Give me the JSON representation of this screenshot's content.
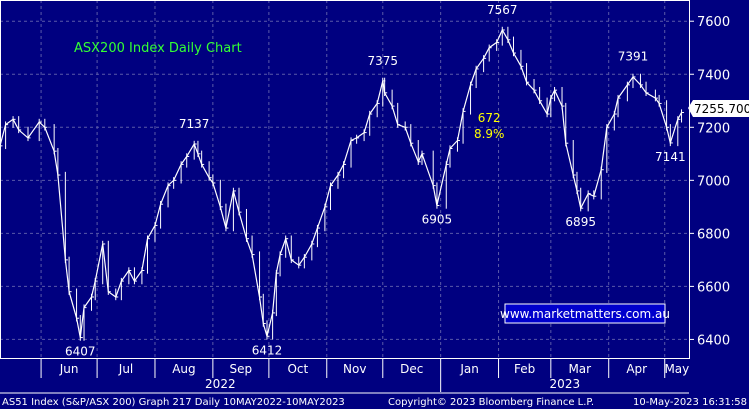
{
  "chart_data": {
    "type": "line",
    "title": "ASX200 Index Daily Chart",
    "ylim": [
      6330,
      7680
    ],
    "grid": true,
    "y_ticks": [
      7600,
      7400,
      7200,
      7000,
      6800,
      6600,
      6400
    ],
    "y_tick_labels": [
      "7600",
      "7400",
      "7200",
      "7000",
      "6800",
      "6600",
      "6400"
    ],
    "x_tick_labels": [
      "Jun",
      "Jul",
      "Aug",
      "Sep",
      "Oct",
      "Nov",
      "Dec",
      "Jan",
      "Feb",
      "Mar",
      "Apr",
      "May"
    ],
    "year_labels": [
      "2022",
      "2023"
    ],
    "last_price": "7255.700",
    "series": [
      {
        "points": [
          [
            "2022-05-10",
            7130
          ],
          [
            "2022-05-13",
            7210
          ],
          [
            "2022-05-17",
            7230
          ],
          [
            "2022-05-20",
            7190
          ],
          [
            "2022-05-25",
            7160
          ],
          [
            "2022-05-31",
            7220
          ],
          [
            "2022-06-03",
            7200
          ],
          [
            "2022-06-08",
            7110
          ],
          [
            "2022-06-10",
            7020
          ],
          [
            "2022-06-14",
            6700
          ],
          [
            "2022-06-16",
            6580
          ],
          [
            "2022-06-20",
            6480
          ],
          [
            "2022-06-22",
            6407
          ],
          [
            "2022-06-24",
            6520
          ],
          [
            "2022-06-28",
            6560
          ],
          [
            "2022-06-30",
            6620
          ],
          [
            "2022-07-04",
            6760
          ],
          [
            "2022-07-07",
            6580
          ],
          [
            "2022-07-11",
            6560
          ],
          [
            "2022-07-14",
            6620
          ],
          [
            "2022-07-18",
            6660
          ],
          [
            "2022-07-21",
            6620
          ],
          [
            "2022-07-25",
            6660
          ],
          [
            "2022-07-28",
            6780
          ],
          [
            "2022-08-01",
            6830
          ],
          [
            "2022-08-04",
            6910
          ],
          [
            "2022-08-08",
            6980
          ],
          [
            "2022-08-11",
            7000
          ],
          [
            "2022-08-15",
            7060
          ],
          [
            "2022-08-18",
            7090
          ],
          [
            "2022-08-22",
            7137
          ],
          [
            "2022-08-24",
            7100
          ],
          [
            "2022-08-26",
            7060
          ],
          [
            "2022-08-30",
            7010
          ],
          [
            "2022-09-01",
            6990
          ],
          [
            "2022-09-05",
            6900
          ],
          [
            "2022-09-08",
            6820
          ],
          [
            "2022-09-12",
            6960
          ],
          [
            "2022-09-15",
            6880
          ],
          [
            "2022-09-19",
            6780
          ],
          [
            "2022-09-22",
            6720
          ],
          [
            "2022-09-26",
            6560
          ],
          [
            "2022-09-28",
            6460
          ],
          [
            "2022-09-30",
            6412
          ],
          [
            "2022-10-03",
            6500
          ],
          [
            "2022-10-05",
            6650
          ],
          [
            "2022-10-07",
            6720
          ],
          [
            "2022-10-10",
            6780
          ],
          [
            "2022-10-13",
            6700
          ],
          [
            "2022-10-17",
            6680
          ],
          [
            "2022-10-20",
            6710
          ],
          [
            "2022-10-24",
            6760
          ],
          [
            "2022-10-27",
            6820
          ],
          [
            "2022-10-31",
            6900
          ],
          [
            "2022-11-03",
            6980
          ],
          [
            "2022-11-07",
            7020
          ],
          [
            "2022-11-10",
            7060
          ],
          [
            "2022-11-14",
            7150
          ],
          [
            "2022-11-17",
            7160
          ],
          [
            "2022-11-21",
            7180
          ],
          [
            "2022-11-24",
            7250
          ],
          [
            "2022-11-28",
            7290
          ],
          [
            "2022-12-01",
            7375
          ],
          [
            "2022-12-02",
            7330
          ],
          [
            "2022-12-06",
            7280
          ],
          [
            "2022-12-09",
            7210
          ],
          [
            "2022-12-13",
            7200
          ],
          [
            "2022-12-16",
            7140
          ],
          [
            "2022-12-20",
            7070
          ],
          [
            "2022-12-22",
            7100
          ],
          [
            "2022-12-28",
            6980
          ],
          [
            "2022-12-30",
            6905
          ],
          [
            "2023-01-04",
            7060
          ],
          [
            "2023-01-06",
            7120
          ],
          [
            "2023-01-10",
            7150
          ],
          [
            "2023-01-13",
            7260
          ],
          [
            "2023-01-17",
            7360
          ],
          [
            "2023-01-20",
            7420
          ],
          [
            "2023-01-24",
            7460
          ],
          [
            "2023-01-27",
            7500
          ],
          [
            "2023-01-31",
            7520
          ],
          [
            "2023-02-03",
            7567
          ],
          [
            "2023-02-06",
            7530
          ],
          [
            "2023-02-09",
            7480
          ],
          [
            "2023-02-13",
            7430
          ],
          [
            "2023-02-16",
            7370
          ],
          [
            "2023-02-20",
            7340
          ],
          [
            "2023-02-23",
            7300
          ],
          [
            "2023-02-27",
            7250
          ],
          [
            "2023-03-01",
            7310
          ],
          [
            "2023-03-03",
            7340
          ],
          [
            "2023-03-07",
            7280
          ],
          [
            "2023-03-09",
            7140
          ],
          [
            "2023-03-13",
            7020
          ],
          [
            "2023-03-15",
            6960
          ],
          [
            "2023-03-17",
            6895
          ],
          [
            "2023-03-21",
            6950
          ],
          [
            "2023-03-24",
            6940
          ],
          [
            "2023-03-28",
            7040
          ],
          [
            "2023-03-31",
            7200
          ],
          [
            "2023-04-04",
            7250
          ],
          [
            "2023-04-06",
            7310
          ],
          [
            "2023-04-11",
            7360
          ],
          [
            "2023-04-14",
            7390
          ],
          [
            "2023-04-18",
            7360
          ],
          [
            "2023-04-21",
            7330
          ],
          [
            "2023-04-26",
            7310
          ],
          [
            "2023-04-28",
            7290
          ],
          [
            "2023-05-02",
            7200
          ],
          [
            "2023-05-04",
            7141
          ],
          [
            "2023-05-08",
            7230
          ],
          [
            "2023-05-10",
            7255.7
          ]
        ]
      }
    ],
    "annotations": [
      {
        "text": "6407",
        "x": "2022-06-22",
        "y": 6407,
        "color": "#ffffff",
        "pos": "below"
      },
      {
        "text": "7137",
        "x": "2022-08-22",
        "y": 7137,
        "color": "#ffffff",
        "pos": "above"
      },
      {
        "text": "6412",
        "x": "2022-09-30",
        "y": 6412,
        "color": "#ffffff",
        "pos": "below"
      },
      {
        "text": "7375",
        "x": "2022-12-01",
        "y": 7375,
        "color": "#ffffff",
        "pos": "above"
      },
      {
        "text": "6905",
        "x": "2022-12-30",
        "y": 6905,
        "color": "#ffffff",
        "pos": "below"
      },
      {
        "text": "7567",
        "x": "2023-02-03",
        "y": 7567,
        "color": "#ffffff",
        "pos": "above"
      },
      {
        "text": "672",
        "x": "2023-01-27",
        "y": 7235,
        "color": "#ffff00",
        "pos": "center"
      },
      {
        "text": "8.9%",
        "x": "2023-01-27",
        "y": 7175,
        "color": "#ffff00",
        "pos": "center"
      },
      {
        "text": "6895",
        "x": "2023-03-17",
        "y": 6895,
        "color": "#ffffff",
        "pos": "below"
      },
      {
        "text": "7391",
        "x": "2023-04-14",
        "y": 7391,
        "color": "#ffffff",
        "pos": "above"
      },
      {
        "text": "7141",
        "x": "2023-05-04",
        "y": 7141,
        "color": "#ffffff",
        "pos": "below"
      }
    ]
  },
  "watermark": "www.marketmatters.com.au",
  "footer": {
    "left": "AS51 Index (S&P/ASX 200) Graph 217  Daily 10MAY2022-10MAY2023",
    "center": "Copyright© 2023 Bloomberg Finance L.P.",
    "right": "10-May-2023 16:31:58"
  },
  "colors": {
    "background": "#000080",
    "line": "#ffffff",
    "grid": "#5a5aa8",
    "title": "#33ff33",
    "annotation_highlight": "#ffff00"
  }
}
